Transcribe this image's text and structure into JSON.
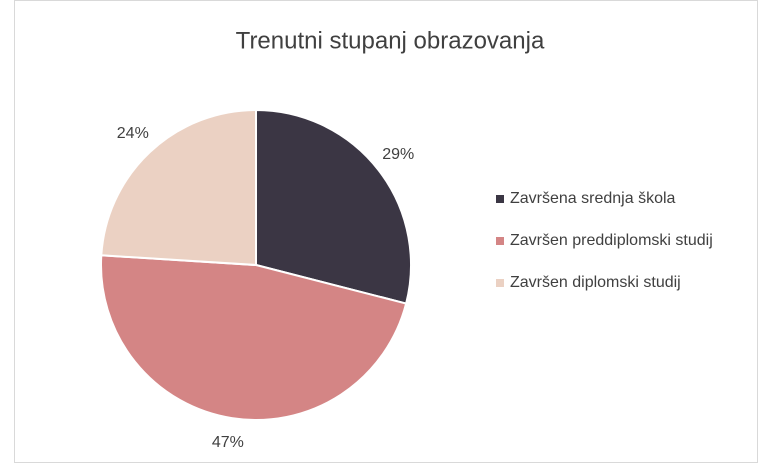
{
  "chart_data": {
    "type": "pie",
    "title": "Trenutni stupanj obrazovanja",
    "categories": [
      "Završena srednja škola",
      "Završen preddiplomski studij",
      "Završen diplomski studij"
    ],
    "values": [
      29,
      47,
      24
    ],
    "value_labels": [
      "29%",
      "47%",
      "24%"
    ],
    "colors": [
      "#3b3644",
      "#d48585",
      "#ebd1c3"
    ],
    "legend": "right"
  }
}
